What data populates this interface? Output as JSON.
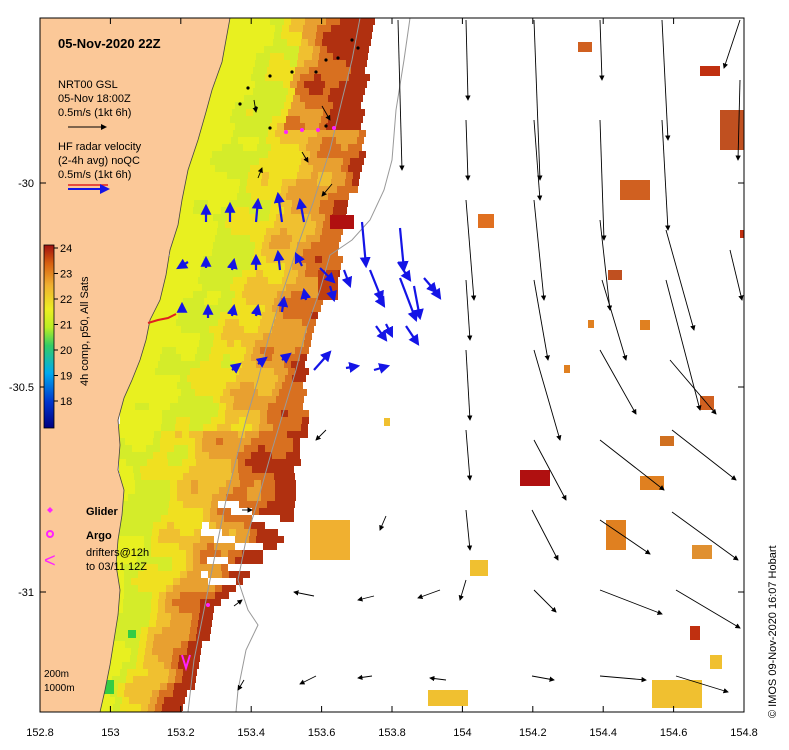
{
  "map": {
    "title": "05-Nov-2020 22Z",
    "x_ticks": [
      "152.8",
      "153",
      "153.2",
      "153.4",
      "153.6",
      "153.8",
      "154",
      "154.2",
      "154.4",
      "154.6",
      "154.8"
    ],
    "y_ticks": [
      "-30",
      "-30.5",
      "-31"
    ],
    "colorbar": {
      "label": "4h comp, p50, All Sats",
      "ticks": [
        "24",
        "23",
        "22",
        "21",
        "20",
        "19",
        "18"
      ]
    },
    "legend": {
      "model_title": "NRT00 GSL",
      "model_time": "05-Nov 18:00Z",
      "model_scale": "0.5m/s (1kt 6h)",
      "radar_title": "HF radar velocity",
      "radar_avg": "(2-4h avg) noQC",
      "radar_scale": "0.5m/s (1kt 6h)",
      "glider": "Glider",
      "argo": "Argo",
      "drifter_marker": "<",
      "drifters_line1": "drifters@12h",
      "drifters_line2": "to 03/11 12Z"
    },
    "depth_labels": [
      "200m",
      "1000m"
    ],
    "credit": "© IMOS 09-Nov-2020 16:07 Hobart",
    "colors": {
      "land": "#fbc898",
      "radar_arrow": "#1414e6",
      "model_arrow": "#000000",
      "glider": "#ff22ff",
      "drifter": "#ff22ff",
      "isobath": "#999999"
    }
  }
}
